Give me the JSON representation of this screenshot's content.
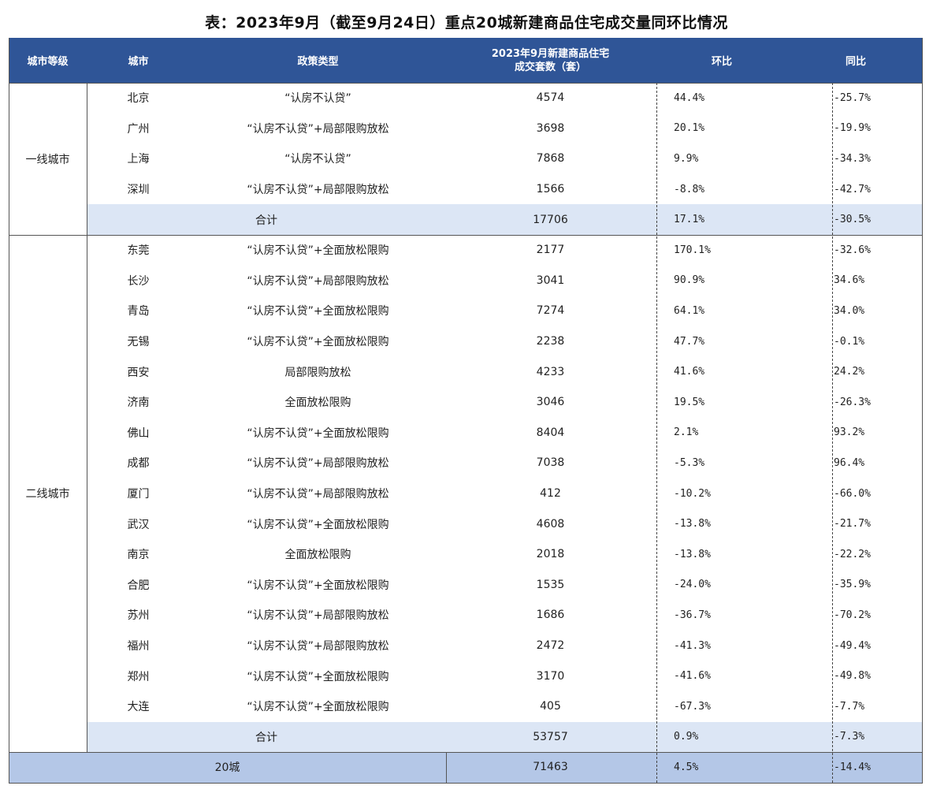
{
  "title": "表：2023年9月（截至9月24日）重点20城新建商品住宅成交量同环比情况",
  "headers": {
    "tier": "城市等级",
    "city": "城市",
    "policy": "政策类型",
    "volume_line1": "2023年9月新建商品住宅",
    "volume_line2": "成交套数（套）",
    "mom": "环比",
    "yoy": "同比"
  },
  "groups": [
    {
      "tier": "一线城市",
      "rows": [
        {
          "city": "北京",
          "policy": "“认房不认贷”",
          "volume": "4574",
          "mom": "44.4%",
          "yoy": "-25.7%"
        },
        {
          "city": "广州",
          "policy": "“认房不认贷”+局部限购放松",
          "volume": "3698",
          "mom": "20.1%",
          "yoy": "-19.9%"
        },
        {
          "city": "上海",
          "policy": "“认房不认贷”",
          "volume": "7868",
          "mom": "9.9%",
          "yoy": "-34.3%"
        },
        {
          "city": "深圳",
          "policy": "“认房不认贷”+局部限购放松",
          "volume": "1566",
          "mom": "-8.8%",
          "yoy": "-42.7%"
        }
      ],
      "subtotal": {
        "label": "合计",
        "volume": "17706",
        "mom": "17.1%",
        "yoy": "-30.5%"
      }
    },
    {
      "tier": "二线城市",
      "rows": [
        {
          "city": "东莞",
          "policy": "“认房不认贷”+全面放松限购",
          "volume": "2177",
          "mom": "170.1%",
          "yoy": "-32.6%"
        },
        {
          "city": "长沙",
          "policy": "“认房不认贷”+局部限购放松",
          "volume": "3041",
          "mom": "90.9%",
          "yoy": "34.6%"
        },
        {
          "city": "青岛",
          "policy": "“认房不认贷”+全面放松限购",
          "volume": "7274",
          "mom": "64.1%",
          "yoy": "34.0%"
        },
        {
          "city": "无锡",
          "policy": "“认房不认贷”+全面放松限购",
          "volume": "2238",
          "mom": "47.7%",
          "yoy": "-0.1%"
        },
        {
          "city": "西安",
          "policy": "局部限购放松",
          "volume": "4233",
          "mom": "41.6%",
          "yoy": "24.2%"
        },
        {
          "city": "济南",
          "policy": "全面放松限购",
          "volume": "3046",
          "mom": "19.5%",
          "yoy": "-26.3%"
        },
        {
          "city": "佛山",
          "policy": "“认房不认贷”+全面放松限购",
          "volume": "8404",
          "mom": "2.1%",
          "yoy": "93.2%"
        },
        {
          "city": "成都",
          "policy": "“认房不认贷”+局部限购放松",
          "volume": "7038",
          "mom": "-5.3%",
          "yoy": "96.4%"
        },
        {
          "city": "厦门",
          "policy": "“认房不认贷”+局部限购放松",
          "volume": "412",
          "mom": "-10.2%",
          "yoy": "-66.0%"
        },
        {
          "city": "武汉",
          "policy": "“认房不认贷”+全面放松限购",
          "volume": "4608",
          "mom": "-13.8%",
          "yoy": "-21.7%"
        },
        {
          "city": "南京",
          "policy": "全面放松限购",
          "volume": "2018",
          "mom": "-13.8%",
          "yoy": "-22.2%"
        },
        {
          "city": "合肥",
          "policy": "“认房不认贷”+全面放松限购",
          "volume": "1535",
          "mom": "-24.0%",
          "yoy": "-35.9%"
        },
        {
          "city": "苏州",
          "policy": "“认房不认贷”+局部限购放松",
          "volume": "1686",
          "mom": "-36.7%",
          "yoy": "-70.2%"
        },
        {
          "city": "福州",
          "policy": "“认房不认贷”+局部限购放松",
          "volume": "2472",
          "mom": "-41.3%",
          "yoy": "-49.4%"
        },
        {
          "city": "郑州",
          "policy": "“认房不认贷”+全面放松限购",
          "volume": "3170",
          "mom": "-41.6%",
          "yoy": "-49.8%"
        },
        {
          "city": "大连",
          "policy": "“认房不认贷”+全面放松限购",
          "volume": "405",
          "mom": "-67.3%",
          "yoy": "-7.7%"
        }
      ],
      "subtotal": {
        "label": "合计",
        "volume": "53757",
        "mom": "0.9%",
        "yoy": "-7.3%"
      }
    }
  ],
  "grand_total": {
    "label": "20城",
    "volume": "71463",
    "mom": "4.5%",
    "yoy": "-14.4%"
  },
  "colors": {
    "header": "#2f5597",
    "subtotal_row": "#dce6f5",
    "total_row": "#b4c7e7",
    "positive_bar": "#e8101a",
    "negative_bar": "#3d8a2a"
  }
}
